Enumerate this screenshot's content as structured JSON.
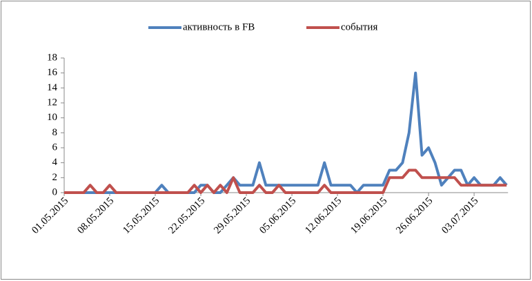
{
  "chart_data": {
    "type": "line",
    "categories": [
      "01.05.2015",
      null,
      null,
      null,
      null,
      null,
      null,
      "08.05.2015",
      null,
      null,
      null,
      null,
      null,
      null,
      "15.05.2015",
      null,
      null,
      null,
      null,
      null,
      null,
      "22.05.2015",
      null,
      null,
      null,
      null,
      null,
      null,
      "29.05.2015",
      null,
      null,
      null,
      null,
      null,
      null,
      "05.06.2015",
      null,
      null,
      null,
      null,
      null,
      null,
      "12.06.2015",
      null,
      null,
      null,
      null,
      null,
      null,
      "19.06.2015",
      null,
      null,
      null,
      null,
      null,
      null,
      "26.06.2015",
      null,
      null,
      null,
      null,
      null,
      null,
      "03.07.2015",
      null,
      null,
      null,
      null,
      null
    ],
    "series": [
      {
        "name": "активность в FB",
        "color": "#4f81bd",
        "values": [
          0,
          0,
          0,
          0,
          0,
          0,
          0,
          0,
          0,
          0,
          0,
          0,
          0,
          0,
          0,
          1,
          0,
          0,
          0,
          0,
          0,
          1,
          1,
          0,
          0,
          1,
          2,
          1,
          1,
          1,
          4,
          1,
          1,
          1,
          1,
          1,
          1,
          1,
          1,
          1,
          4,
          1,
          1,
          1,
          1,
          0,
          1,
          1,
          1,
          1,
          3,
          3,
          4,
          8,
          16,
          5,
          6,
          4,
          1,
          2,
          3,
          3,
          1,
          2,
          1,
          1,
          1,
          2,
          1
        ]
      },
      {
        "name": "события",
        "color": "#c0504d",
        "values": [
          0,
          0,
          0,
          0,
          1,
          0,
          0,
          1,
          0,
          0,
          0,
          0,
          0,
          0,
          0,
          0,
          0,
          0,
          0,
          0,
          1,
          0,
          1,
          0,
          1,
          0,
          2,
          0,
          0,
          0,
          1,
          0,
          0,
          1,
          0,
          0,
          0,
          0,
          0,
          0,
          1,
          0,
          0,
          0,
          0,
          0,
          0,
          0,
          0,
          0,
          2,
          2,
          2,
          3,
          3,
          2,
          2,
          2,
          2,
          2,
          2,
          1,
          1,
          1,
          1,
          1,
          1,
          1,
          1
        ]
      }
    ],
    "ylim": [
      0,
      18
    ],
    "yticks": [
      0,
      2,
      4,
      6,
      8,
      10,
      12,
      14,
      16,
      18
    ],
    "legend": "top"
  }
}
